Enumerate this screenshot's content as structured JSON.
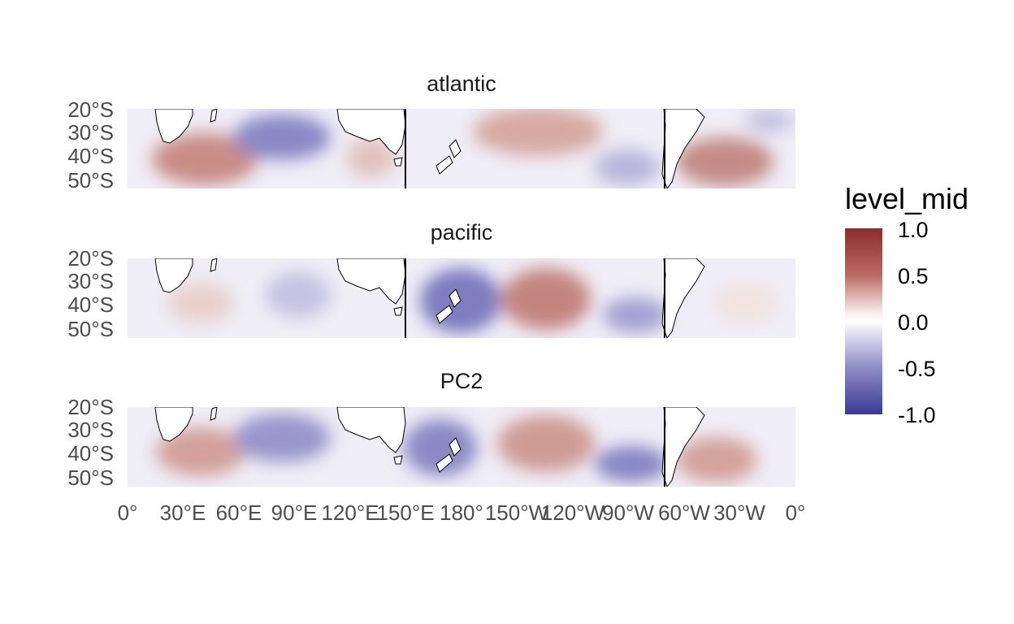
{
  "panels": [
    {
      "title": "atlantic"
    },
    {
      "title": "pacific"
    },
    {
      "title": "PC2"
    }
  ],
  "y_ticks": [
    "20°S",
    "30°S",
    "40°S",
    "50°S"
  ],
  "x_ticks": [
    "0°",
    "30°E",
    "60°E",
    "90°E",
    "120°E",
    "150°E",
    "180°",
    "150°W",
    "120°W",
    "90°W",
    "60°W",
    "30°W",
    "0°"
  ],
  "legend": {
    "title": "level_mid",
    "labels": [
      "1.0",
      "0.5",
      "0.0",
      "-0.5",
      "-1.0"
    ],
    "colors": {
      "high": "#8b2d2b",
      "mid": "#ffffff",
      "low": "#3b3a95"
    }
  }
}
